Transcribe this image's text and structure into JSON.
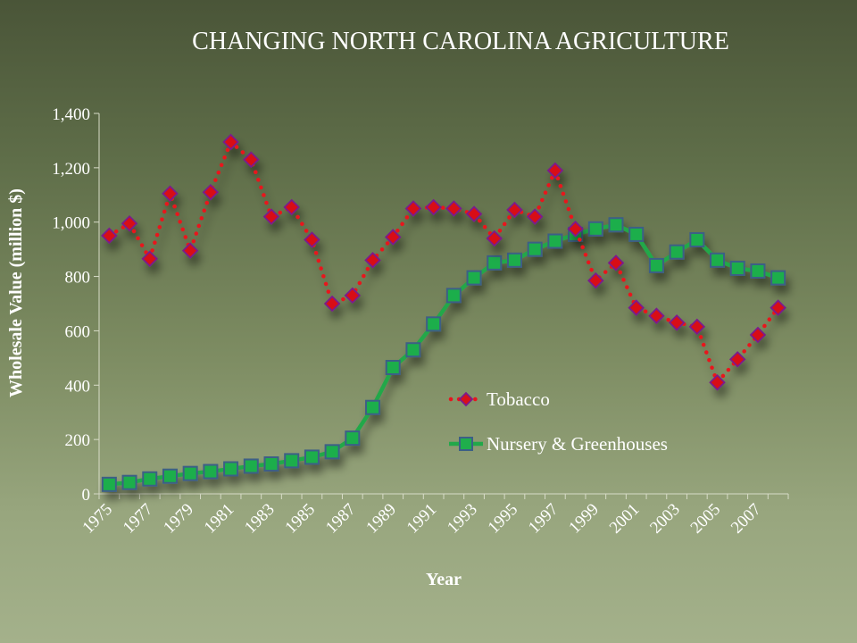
{
  "chart_data": {
    "type": "line",
    "title": "CHANGING NORTH CAROLINA AGRICULTURE",
    "xlabel": "Year",
    "ylabel": "Wholesale Value (million $)",
    "ylim": [
      0,
      1400
    ],
    "yticks": [
      0,
      200,
      400,
      600,
      800,
      1000,
      1200,
      1400
    ],
    "ytick_labels": [
      "0",
      "200",
      "400",
      "600",
      "800",
      "1,000",
      "1,200",
      "1,400"
    ],
    "x": [
      1975,
      1976,
      1977,
      1978,
      1979,
      1980,
      1981,
      1982,
      1983,
      1984,
      1985,
      1986,
      1987,
      1988,
      1989,
      1990,
      1991,
      1992,
      1993,
      1994,
      1995,
      1996,
      1997,
      1998,
      1999,
      2000,
      2001,
      2002,
      2003,
      2004,
      2005,
      2006,
      2007,
      2008
    ],
    "xtick_labels": [
      "1975",
      "1977",
      "1979",
      "1981",
      "1983",
      "1985",
      "1987",
      "1989",
      "1991",
      "1993",
      "1995",
      "1997",
      "1999",
      "2001",
      "2003",
      "2005",
      "2007"
    ],
    "grid": false,
    "legend_position": "center-right",
    "series": [
      {
        "name": "Tobacco",
        "color": "#e8141e",
        "style": "dotted",
        "marker": "diamond",
        "values": [
          950,
          995,
          865,
          1105,
          895,
          1110,
          1295,
          1230,
          1020,
          1055,
          935,
          700,
          730,
          860,
          945,
          1050,
          1055,
          1050,
          1030,
          940,
          1045,
          1020,
          1190,
          975,
          785,
          850,
          685,
          655,
          630,
          615,
          410,
          495,
          585,
          685
        ]
      },
      {
        "name": "Nursery & Greenhouses",
        "color": "#22a84a",
        "style": "solid",
        "marker": "square",
        "values": [
          35,
          42,
          55,
          65,
          75,
          82,
          92,
          102,
          110,
          122,
          135,
          155,
          205,
          318,
          465,
          530,
          625,
          730,
          795,
          850,
          860,
          900,
          930,
          955,
          975,
          990,
          955,
          840,
          890,
          935,
          860,
          830,
          820,
          795
        ]
      }
    ]
  }
}
